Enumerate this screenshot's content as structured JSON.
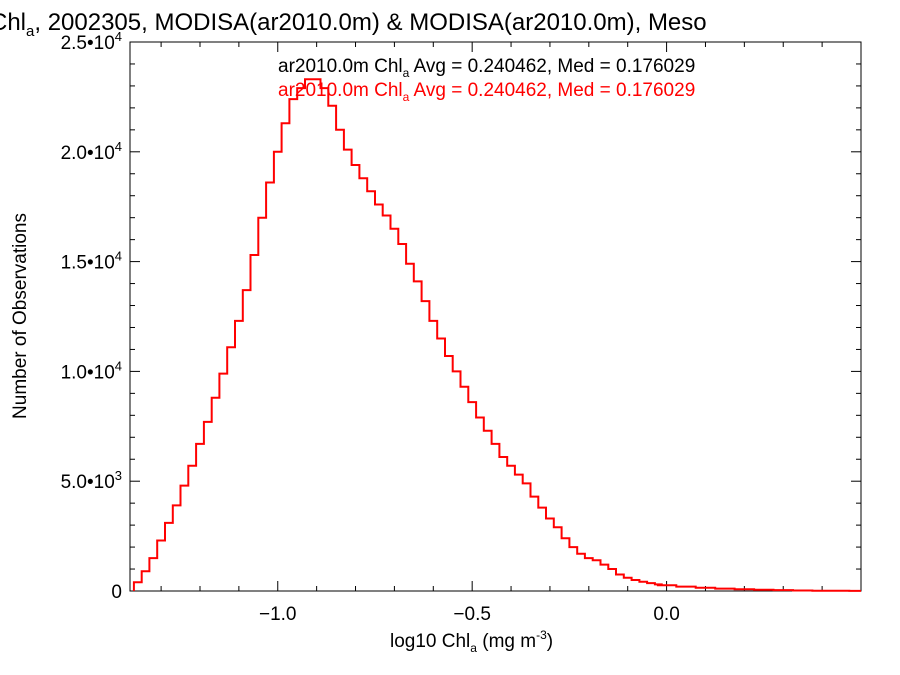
{
  "chart_data": {
    "type": "line",
    "title_pre": "Chl",
    "title_sub": "a",
    "title_post": ", 2002305, MODISA(ar2010.0m) & MODISA(ar2010.0m), Meso",
    "xlabel_pre": "log10 Chl",
    "xlabel_sub": "a",
    "xlabel_mid": " (mg m",
    "xlabel_sup": "-3",
    "xlabel_post": ")",
    "ylabel": "Number of Observations",
    "xlim": [
      -1.38,
      0.5
    ],
    "ylim": [
      0,
      25000
    ],
    "x_ticks": [
      {
        "value": -1.0,
        "label": "−1.0"
      },
      {
        "value": -0.5,
        "label": "−0.5"
      },
      {
        "value": 0.0,
        "label": "0.0"
      }
    ],
    "y_ticks": [
      {
        "value": 0,
        "mant": "0",
        "exp": ""
      },
      {
        "value": 5000,
        "mant": "5.0•10",
        "exp": "3"
      },
      {
        "value": 10000,
        "mant": "1.0•10",
        "exp": "4"
      },
      {
        "value": 15000,
        "mant": "1.5•10",
        "exp": "4"
      },
      {
        "value": 20000,
        "mant": "2.0•10",
        "exp": "4"
      },
      {
        "value": 25000,
        "mant": "2.5•10",
        "exp": "4"
      }
    ],
    "legend": [
      {
        "pre": "ar2010.0m Chl",
        "sub": "a",
        "post": " Avg = 0.240462, Med = 0.176029",
        "color": "#000000"
      },
      {
        "pre": "ar2010.0m Chl",
        "sub": "a",
        "post": " Avg = 0.240462, Med = 0.176029",
        "color": "#ff0000"
      }
    ],
    "series": [
      {
        "color": "#ff0000",
        "x": [
          -1.36,
          -1.34,
          -1.32,
          -1.3,
          -1.28,
          -1.26,
          -1.24,
          -1.22,
          -1.2,
          -1.18,
          -1.16,
          -1.14,
          -1.12,
          -1.1,
          -1.08,
          -1.06,
          -1.04,
          -1.02,
          -1.0,
          -0.98,
          -0.96,
          -0.94,
          -0.92,
          -0.9,
          -0.88,
          -0.86,
          -0.84,
          -0.82,
          -0.8,
          -0.78,
          -0.76,
          -0.74,
          -0.72,
          -0.7,
          -0.68,
          -0.66,
          -0.64,
          -0.62,
          -0.6,
          -0.58,
          -0.56,
          -0.54,
          -0.52,
          -0.5,
          -0.48,
          -0.46,
          -0.44,
          -0.42,
          -0.4,
          -0.38,
          -0.36,
          -0.34,
          -0.32,
          -0.3,
          -0.28,
          -0.26,
          -0.24,
          -0.22,
          -0.2,
          -0.18,
          -0.16,
          -0.14,
          -0.12,
          -0.1,
          -0.08,
          -0.06,
          -0.04,
          -0.02,
          0.0,
          0.05,
          0.1,
          0.15,
          0.2,
          0.25,
          0.3,
          0.35,
          0.4,
          0.45,
          0.49
        ],
        "values": [
          400,
          900,
          1500,
          2300,
          3100,
          3900,
          4800,
          5700,
          6700,
          7700,
          8800,
          9900,
          11100,
          12300,
          13700,
          15300,
          17000,
          18600,
          20000,
          21300,
          22400,
          22900,
          23300,
          23300,
          22900,
          22100,
          21000,
          20100,
          19400,
          18800,
          18200,
          17600,
          17100,
          16500,
          15800,
          14900,
          14100,
          13200,
          12300,
          11500,
          10700,
          10000,
          9300,
          8600,
          7900,
          7300,
          6700,
          6100,
          5700,
          5300,
          4900,
          4300,
          3800,
          3300,
          2900,
          2400,
          2000,
          1700,
          1500,
          1400,
          1200,
          1000,
          750,
          600,
          500,
          420,
          360,
          300,
          260,
          200,
          150,
          110,
          80,
          60,
          40,
          25,
          15,
          8,
          5
        ]
      }
    ]
  }
}
